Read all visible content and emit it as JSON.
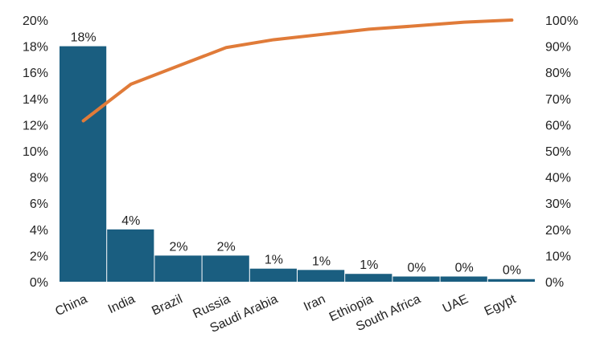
{
  "chart_data": {
    "type": "bar",
    "categories": [
      "China",
      "India",
      "Brazil",
      "Russia",
      "Saudi Arabia",
      "Iran",
      "Ethiopia",
      "South Africa",
      "UAE",
      "Egypt"
    ],
    "series": [
      {
        "type": "bar",
        "axis": "left",
        "values": [
          18,
          4,
          2,
          2,
          1,
          0.9,
          0.6,
          0.4,
          0.4,
          0.2
        ],
        "data_labels": [
          "18%",
          "4%",
          "2%",
          "2%",
          "1%",
          "1%",
          "1%",
          "0%",
          "0%",
          "0%"
        ],
        "color": "#1a5e80"
      },
      {
        "type": "line",
        "axis": "right",
        "values": [
          61.5,
          75.5,
          82.5,
          89.5,
          92.5,
          94.5,
          96.5,
          97.8,
          99.2,
          100
        ],
        "color": "#e07b39"
      }
    ],
    "y_left": {
      "min": 0,
      "max": 20,
      "step": 2,
      "tick_labels": [
        "0%",
        "2%",
        "4%",
        "6%",
        "8%",
        "10%",
        "12%",
        "14%",
        "16%",
        "18%",
        "20%"
      ]
    },
    "y_right": {
      "min": 0,
      "max": 100,
      "step": 10,
      "tick_labels": [
        "0%",
        "10%",
        "20%",
        "30%",
        "40%",
        "50%",
        "60%",
        "70%",
        "80%",
        "90%",
        "100%"
      ]
    },
    "grid": false,
    "legend": "none"
  }
}
